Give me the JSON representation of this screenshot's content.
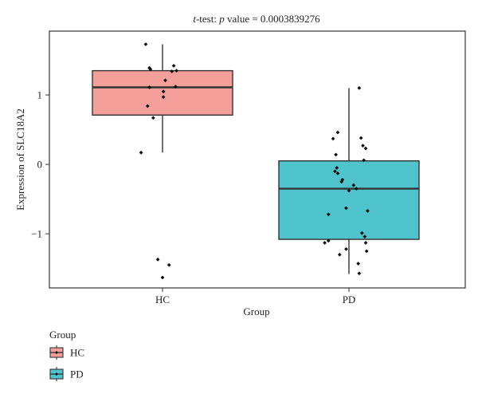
{
  "chart_data": {
    "type": "box",
    "title_prefix": "t",
    "title_rest": "-test: ",
    "title_p": "p",
    "title_suffix": " value = 0.0003839276",
    "xlabel": "Group",
    "ylabel": "Expression of SLC18A2",
    "ylim": [
      -1.78,
      1.92
    ],
    "yticks": [
      -1,
      0,
      1
    ],
    "grid": false,
    "legend": {
      "title": "Group",
      "placement": "bottom-left"
    },
    "categories": [
      "HC",
      "PD"
    ],
    "colors": {
      "HC": "#f4a09a",
      "PD": "#4fc4cc"
    },
    "boxes": [
      {
        "group": "HC",
        "lower_whisker": 0.17,
        "q1": 0.71,
        "median": 1.11,
        "q3": 1.35,
        "upper_whisker": 1.73
      },
      {
        "group": "PD",
        "lower_whisker": -1.58,
        "q1": -1.08,
        "median": -0.35,
        "q3": 0.05,
        "upper_whisker": 1.1
      }
    ],
    "points": [
      {
        "group": "HC",
        "jitter": -0.18,
        "y": 1.73
      },
      {
        "group": "HC",
        "jitter": -0.14,
        "y": 1.39
      },
      {
        "group": "HC",
        "jitter": -0.13,
        "y": 1.37
      },
      {
        "group": "HC",
        "jitter": 0.12,
        "y": 1.42
      },
      {
        "group": "HC",
        "jitter": 0.15,
        "y": 1.35
      },
      {
        "group": "HC",
        "jitter": 0.1,
        "y": 1.34
      },
      {
        "group": "HC",
        "jitter": 0.03,
        "y": 1.21
      },
      {
        "group": "HC",
        "jitter": 0.14,
        "y": 1.12
      },
      {
        "group": "HC",
        "jitter": -0.14,
        "y": 1.11
      },
      {
        "group": "HC",
        "jitter": 0.01,
        "y": 1.05
      },
      {
        "group": "HC",
        "jitter": 0.01,
        "y": 0.97
      },
      {
        "group": "HC",
        "jitter": -0.16,
        "y": 0.84
      },
      {
        "group": "HC",
        "jitter": -0.1,
        "y": 0.67
      },
      {
        "group": "HC",
        "jitter": -0.23,
        "y": 0.17
      },
      {
        "group": "HC",
        "jitter": -0.05,
        "y": -1.37
      },
      {
        "group": "HC",
        "jitter": 0.07,
        "y": -1.45
      },
      {
        "group": "HC",
        "jitter": 0.0,
        "y": -1.63
      },
      {
        "group": "PD",
        "jitter": 0.11,
        "y": 1.1
      },
      {
        "group": "PD",
        "jitter": -0.12,
        "y": 0.46
      },
      {
        "group": "PD",
        "jitter": -0.17,
        "y": 0.37
      },
      {
        "group": "PD",
        "jitter": 0.13,
        "y": 0.38
      },
      {
        "group": "PD",
        "jitter": 0.15,
        "y": 0.27
      },
      {
        "group": "PD",
        "jitter": 0.18,
        "y": 0.23
      },
      {
        "group": "PD",
        "jitter": -0.14,
        "y": 0.14
      },
      {
        "group": "PD",
        "jitter": 0.16,
        "y": 0.06
      },
      {
        "group": "PD",
        "jitter": -0.13,
        "y": -0.05
      },
      {
        "group": "PD",
        "jitter": -0.15,
        "y": -0.1
      },
      {
        "group": "PD",
        "jitter": -0.12,
        "y": -0.13
      },
      {
        "group": "PD",
        "jitter": -0.07,
        "y": -0.22
      },
      {
        "group": "PD",
        "jitter": -0.08,
        "y": -0.25
      },
      {
        "group": "PD",
        "jitter": 0.05,
        "y": -0.3
      },
      {
        "group": "PD",
        "jitter": 0.08,
        "y": -0.35
      },
      {
        "group": "PD",
        "jitter": 0.0,
        "y": -0.38
      },
      {
        "group": "PD",
        "jitter": -0.03,
        "y": -0.63
      },
      {
        "group": "PD",
        "jitter": 0.2,
        "y": -0.67
      },
      {
        "group": "PD",
        "jitter": -0.22,
        "y": -0.72
      },
      {
        "group": "PD",
        "jitter": 0.14,
        "y": -0.99
      },
      {
        "group": "PD",
        "jitter": 0.17,
        "y": -1.04
      },
      {
        "group": "PD",
        "jitter": -0.22,
        "y": -1.1
      },
      {
        "group": "PD",
        "jitter": -0.26,
        "y": -1.13
      },
      {
        "group": "PD",
        "jitter": 0.18,
        "y": -1.13
      },
      {
        "group": "PD",
        "jitter": -0.03,
        "y": -1.22
      },
      {
        "group": "PD",
        "jitter": 0.19,
        "y": -1.25
      },
      {
        "group": "PD",
        "jitter": -0.1,
        "y": -1.3
      },
      {
        "group": "PD",
        "jitter": 0.1,
        "y": -1.43
      },
      {
        "group": "PD",
        "jitter": 0.11,
        "y": -1.57
      }
    ]
  }
}
